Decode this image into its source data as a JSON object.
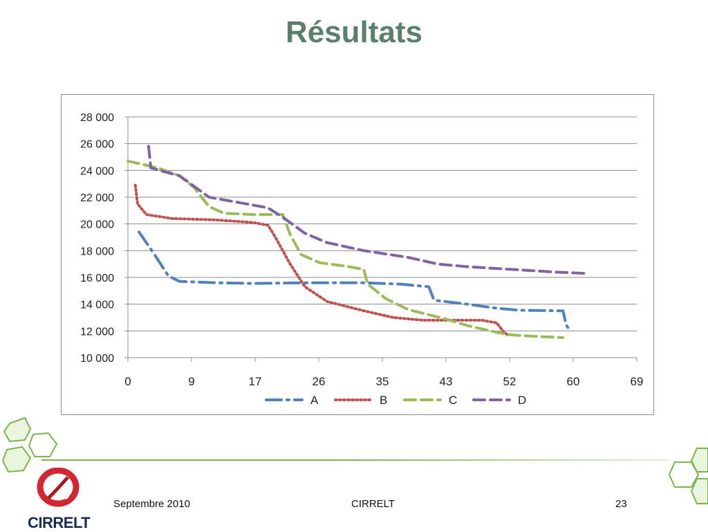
{
  "slide": {
    "title": "Résultats",
    "footer_left": "Septembre 2010",
    "footer_center": "CIRRELT",
    "page_number": "23",
    "logo_text": "CIRRELT"
  },
  "colors": {
    "title": "#5b7f6e",
    "accent_green": "#7ab648",
    "logo_red": "#d22630"
  },
  "chart_data": {
    "type": "line",
    "title": "",
    "xlabel": "",
    "ylabel": "",
    "xlim": [
      0,
      69
    ],
    "ylim": [
      10000,
      28000
    ],
    "x_ticks": [
      "0",
      "9",
      "17",
      "26",
      "35",
      "43",
      "52",
      "60",
      "69"
    ],
    "y_ticks": [
      "10 000",
      "12 000",
      "14 000",
      "16 000",
      "18 000",
      "20 000",
      "22 000",
      "24 000",
      "26 000",
      "28 000"
    ],
    "grid": "horizontal",
    "legend_position": "bottom",
    "series": [
      {
        "name": "A",
        "color": "#4f81bd",
        "dash": "long-dash-dot",
        "points": [
          [
            1.5,
            19400
          ],
          [
            3.5,
            17800
          ],
          [
            5.5,
            16100
          ],
          [
            7,
            15700
          ],
          [
            12,
            15600
          ],
          [
            17,
            15550
          ],
          [
            25,
            15600
          ],
          [
            32,
            15600
          ],
          [
            37,
            15500
          ],
          [
            40.8,
            15300
          ],
          [
            41.5,
            14300
          ],
          [
            43,
            14200
          ],
          [
            46,
            14000
          ],
          [
            50,
            13700
          ],
          [
            53,
            13550
          ],
          [
            59,
            13500
          ],
          [
            59.4,
            12500
          ],
          [
            60,
            11900
          ]
        ]
      },
      {
        "name": "B",
        "color": "#c0504d",
        "dash": "dot",
        "points": [
          [
            1,
            22900
          ],
          [
            1.3,
            21500
          ],
          [
            2.5,
            20700
          ],
          [
            6,
            20400
          ],
          [
            12,
            20300
          ],
          [
            17,
            20100
          ],
          [
            19,
            19900
          ],
          [
            20,
            19000
          ],
          [
            22,
            17000
          ],
          [
            24,
            15300
          ],
          [
            27,
            14200
          ],
          [
            32,
            13500
          ],
          [
            36,
            13000
          ],
          [
            40,
            12800
          ],
          [
            45,
            12800
          ],
          [
            48,
            12800
          ],
          [
            50,
            12600
          ],
          [
            51,
            11900
          ],
          [
            51.5,
            11700
          ]
        ]
      },
      {
        "name": "C",
        "color": "#9bbb59",
        "dash": "dash",
        "points": [
          [
            0,
            24700
          ],
          [
            4,
            24200
          ],
          [
            7,
            23600
          ],
          [
            9,
            22700
          ],
          [
            11,
            21300
          ],
          [
            13,
            20800
          ],
          [
            17,
            20700
          ],
          [
            21,
            20700
          ],
          [
            22,
            19200
          ],
          [
            23.5,
            17700
          ],
          [
            26,
            17100
          ],
          [
            30,
            16800
          ],
          [
            32,
            16600
          ],
          [
            32.5,
            15500
          ],
          [
            35,
            14400
          ],
          [
            38,
            13600
          ],
          [
            43,
            12900
          ],
          [
            46,
            12400
          ],
          [
            50,
            11900
          ],
          [
            52,
            11700
          ],
          [
            55,
            11600
          ],
          [
            59,
            11500
          ]
        ]
      },
      {
        "name": "D",
        "color": "#8064a2",
        "dash": "dash",
        "points": [
          [
            2.8,
            25800
          ],
          [
            3.1,
            24200
          ],
          [
            5,
            23900
          ],
          [
            7,
            23600
          ],
          [
            9,
            22800
          ],
          [
            11,
            22000
          ],
          [
            15,
            21600
          ],
          [
            19,
            21200
          ],
          [
            21,
            20500
          ],
          [
            24,
            19300
          ],
          [
            27,
            18600
          ],
          [
            32,
            18000
          ],
          [
            38,
            17500
          ],
          [
            42,
            17000
          ],
          [
            46,
            16800
          ],
          [
            52,
            16600
          ],
          [
            58,
            16400
          ],
          [
            62,
            16300
          ]
        ]
      }
    ]
  }
}
